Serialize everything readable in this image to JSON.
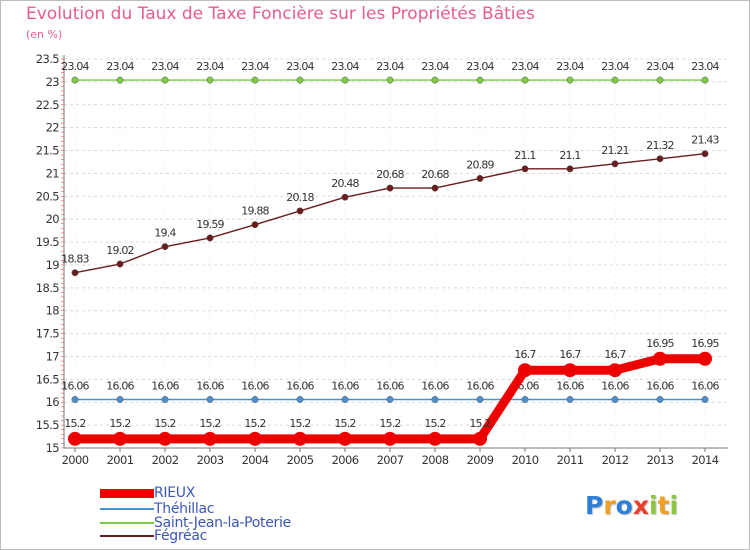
{
  "chart_data": {
    "type": "line",
    "title": "Evolution du Taux de Taxe Foncière sur les Propriétés Bâties",
    "ylabel": "(en %)",
    "xlabel": "",
    "ylim": [
      15,
      23.5
    ],
    "yticks": [
      "15",
      "15.5",
      "16",
      "16.5",
      "17",
      "17.5",
      "18",
      "18.5",
      "19",
      "19.5",
      "20",
      "20.5",
      "21",
      "21.5",
      "22",
      "22.5",
      "23",
      "23.5"
    ],
    "categories": [
      "2000",
      "2001",
      "2002",
      "2003",
      "2004",
      "2005",
      "2006",
      "2007",
      "2008",
      "2009",
      "2010",
      "2011",
      "2012",
      "2013",
      "2014"
    ],
    "series": [
      {
        "name": "Saint-Jean-la-Poterie",
        "color": "#7ccc44",
        "values": [
          23.04,
          23.04,
          23.04,
          23.04,
          23.04,
          23.04,
          23.04,
          23.04,
          23.04,
          23.04,
          23.04,
          23.04,
          23.04,
          23.04,
          23.04
        ],
        "labels": [
          "23.04",
          "23.04",
          "23.04",
          "23.04",
          "23.04",
          "23.04",
          "23.04",
          "23.04",
          "23.04",
          "23.04",
          "23.04",
          "23.04",
          "23.04",
          "23.04",
          "23.04"
        ]
      },
      {
        "name": "Fégréac",
        "color": "#6b1c1c",
        "values": [
          18.83,
          19.02,
          19.4,
          19.59,
          19.88,
          20.18,
          20.48,
          20.68,
          20.68,
          20.89,
          21.1,
          21.1,
          21.21,
          21.32,
          21.43
        ],
        "labels": [
          "18.83",
          "19.02",
          "19.4",
          "19.59",
          "19.88",
          "20.18",
          "20.48",
          "20.68",
          "20.68",
          "20.89",
          "21.1",
          "21.1",
          "21.21",
          "21.32",
          "21.43"
        ]
      },
      {
        "name": "Théhillac",
        "color": "#4a8fd0",
        "values": [
          16.06,
          16.06,
          16.06,
          16.06,
          16.06,
          16.06,
          16.06,
          16.06,
          16.06,
          16.06,
          16.06,
          16.06,
          16.06,
          16.06,
          16.06
        ],
        "labels": [
          "16.06",
          "16.06",
          "16.06",
          "16.06",
          "16.06",
          "16.06",
          "16.06",
          "16.06",
          "16.06",
          "16.06",
          "16.06",
          "16.06",
          "16.06",
          "16.06",
          "16.06"
        ]
      },
      {
        "name": "RIEUX",
        "color": "#ee0000",
        "values": [
          15.2,
          15.2,
          15.2,
          15.2,
          15.2,
          15.2,
          15.2,
          15.2,
          15.2,
          15.2,
          16.7,
          16.7,
          16.7,
          16.95,
          16.95
        ],
        "labels": [
          "15.2",
          "15.2",
          "15.2",
          "15.2",
          "15.2",
          "15.2",
          "15.2",
          "15.2",
          "15.2",
          "15.2",
          "16.7",
          "16.7",
          "16.7",
          "16.95",
          "16.95"
        ]
      }
    ],
    "legend": [
      "RIEUX",
      "Théhillac",
      "Saint-Jean-la-Poterie",
      "Fégréac"
    ]
  },
  "legend_items": [
    {
      "name": "RIEUX",
      "color": "#ee0000"
    },
    {
      "name": "Théhillac",
      "color": "#4a8fd0"
    },
    {
      "name": "Saint-Jean-la-Poterie",
      "color": "#7ccc44"
    },
    {
      "name": "Fégréac",
      "color": "#6b1c1c"
    }
  ],
  "logo": {
    "letters": [
      "P",
      "r",
      "o",
      "x",
      "i",
      "t",
      "i"
    ],
    "colors": [
      "#2f7fd6",
      "#f0a020",
      "#2f7fd6",
      "#e8402a",
      "#8cc63f",
      "#f0a020",
      "#8cc63f"
    ]
  }
}
